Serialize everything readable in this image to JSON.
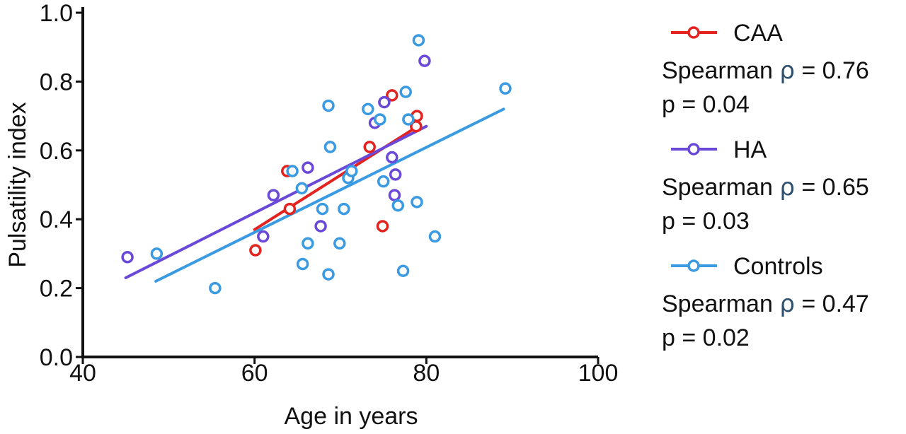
{
  "chart_data": {
    "type": "scatter",
    "xlabel": "Age in years",
    "ylabel": "Pulsatility index",
    "xlim": [
      40,
      100
    ],
    "ylim": [
      0.0,
      1.0
    ],
    "xticks": [
      "40",
      "60",
      "80",
      "100"
    ],
    "yticks": [
      "0.0",
      "0.2",
      "0.4",
      "0.6",
      "0.8",
      "1.0"
    ],
    "grid": false,
    "legend_position": "right",
    "series": [
      {
        "name": "CAA",
        "color": "#e3231f",
        "stat_label": "Spearman",
        "stat_symbol": "ρ",
        "stat_value": "= 0.76",
        "p_text": "p = 0.04",
        "points": [
          [
            60.1,
            0.31
          ],
          [
            63.8,
            0.54
          ],
          [
            64.1,
            0.43
          ],
          [
            73.4,
            0.61
          ],
          [
            76.0,
            0.76
          ],
          [
            74.9,
            0.38
          ],
          [
            78.9,
            0.7
          ],
          [
            78.8,
            0.67
          ]
        ],
        "fit": [
          [
            60.0,
            0.37
          ],
          [
            79.0,
            0.67
          ]
        ]
      },
      {
        "name": "HA",
        "color": "#6a48d8",
        "stat_label": "Spearman",
        "stat_symbol": "ρ",
        "stat_value": "= 0.65",
        "p_text": "p = 0.03",
        "points": [
          [
            45.2,
            0.29
          ],
          [
            61.0,
            0.35
          ],
          [
            62.2,
            0.47
          ],
          [
            66.2,
            0.55
          ],
          [
            67.7,
            0.38
          ],
          [
            74.0,
            0.68
          ],
          [
            75.1,
            0.74
          ],
          [
            76.0,
            0.58
          ],
          [
            76.4,
            0.53
          ],
          [
            76.3,
            0.47
          ],
          [
            79.8,
            0.86
          ]
        ],
        "fit": [
          [
            45.0,
            0.23
          ],
          [
            80.0,
            0.67
          ]
        ]
      },
      {
        "name": "Controls",
        "color": "#3a9ae2",
        "stat_label": "Spearman",
        "stat_symbol": "ρ",
        "stat_value": "= 0.47",
        "p_text": "p = 0.02",
        "points": [
          [
            48.6,
            0.3
          ],
          [
            55.4,
            0.2
          ],
          [
            64.4,
            0.54
          ],
          [
            65.5,
            0.49
          ],
          [
            66.2,
            0.33
          ],
          [
            65.6,
            0.27
          ],
          [
            68.6,
            0.73
          ],
          [
            68.8,
            0.61
          ],
          [
            67.9,
            0.43
          ],
          [
            68.6,
            0.24
          ],
          [
            69.9,
            0.33
          ],
          [
            70.4,
            0.43
          ],
          [
            70.9,
            0.52
          ],
          [
            71.3,
            0.54
          ],
          [
            73.2,
            0.72
          ],
          [
            74.6,
            0.69
          ],
          [
            75.0,
            0.51
          ],
          [
            76.7,
            0.44
          ],
          [
            77.3,
            0.25
          ],
          [
            77.6,
            0.77
          ],
          [
            77.9,
            0.69
          ],
          [
            79.1,
            0.92
          ],
          [
            78.9,
            0.45
          ],
          [
            81.0,
            0.35
          ],
          [
            89.2,
            0.78
          ]
        ],
        "fit": [
          [
            48.5,
            0.22
          ],
          [
            89.0,
            0.72
          ]
        ]
      }
    ]
  }
}
